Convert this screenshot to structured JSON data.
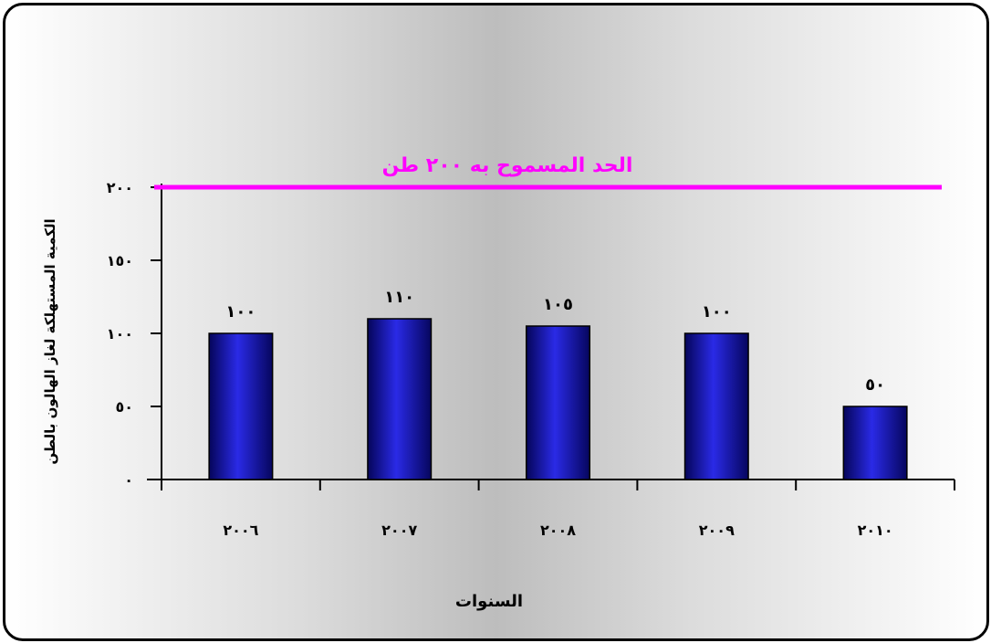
{
  "chart_data": {
    "type": "bar",
    "categories": [
      "٢٠٠٦",
      "٢٠٠٧",
      "٢٠٠٨",
      "٢٠٠٩",
      "٢٠١٠"
    ],
    "values": [
      100,
      110,
      105,
      100,
      50
    ],
    "data_labels": [
      "١٠٠",
      "١١٠",
      "١٠٥",
      "١٠٠",
      "٥٠"
    ],
    "ylim": [
      0,
      200
    ],
    "yticks": [
      0,
      50,
      100,
      150,
      200
    ],
    "ytick_labels": [
      "٠",
      "٥٠",
      "١٠٠",
      "١٥٠",
      "٢٠٠"
    ],
    "xlabel": "السنوات",
    "ylabel": "الكمية المستهلكة لغاز الهالون بالطن",
    "reference_line": {
      "value": 200,
      "label": "الحد المسموح به ٢٠٠ طن",
      "color": "#ff00ff"
    },
    "bar_color": "#1010b0",
    "grid": false
  }
}
